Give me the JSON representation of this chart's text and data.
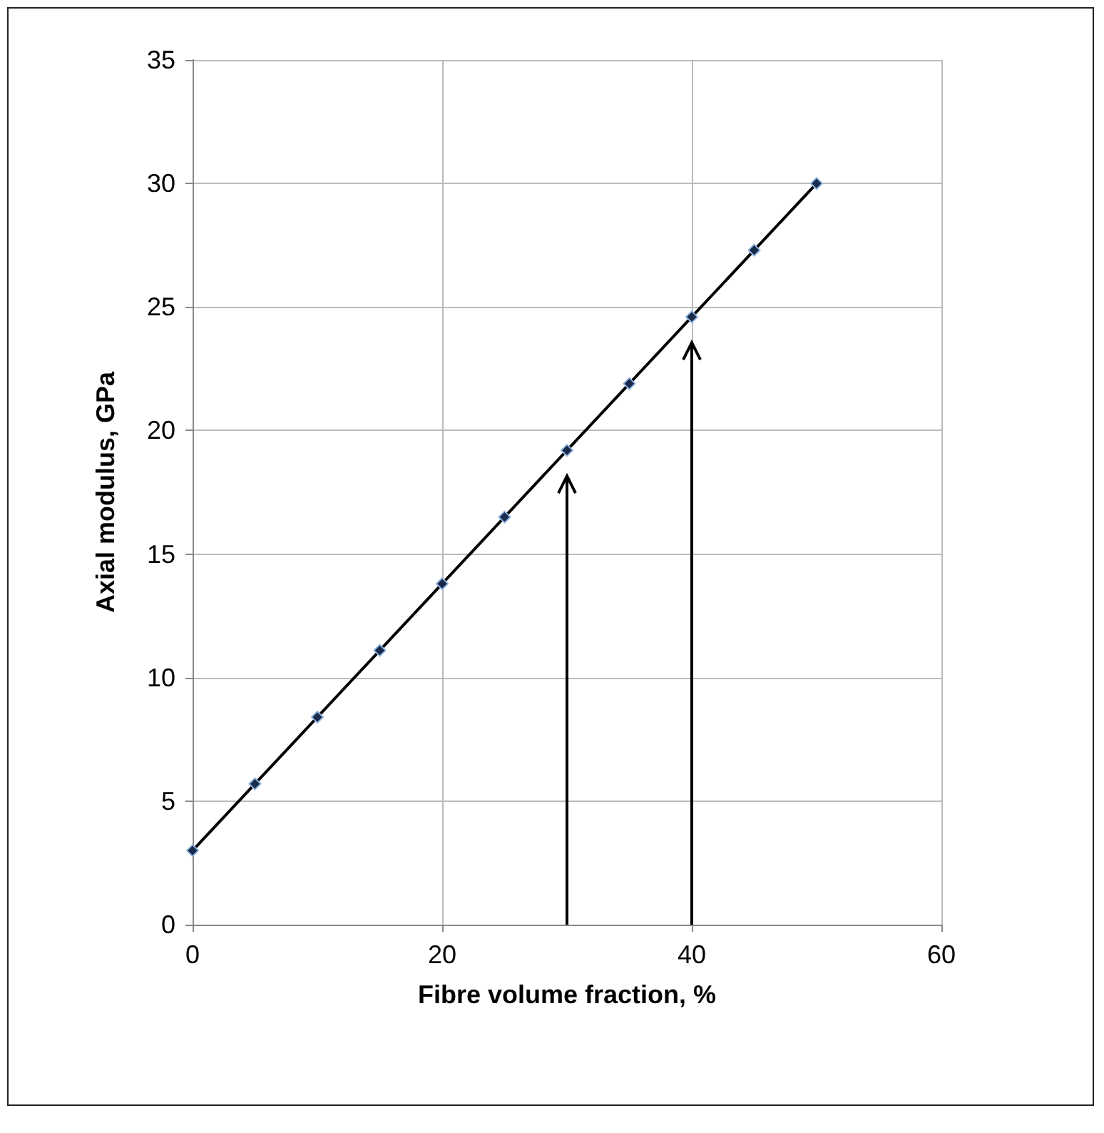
{
  "chart_data": {
    "type": "line",
    "xlabel": "Fibre volume fraction, %",
    "ylabel": "Axial modulus, GPa",
    "x": [
      0,
      5,
      10,
      15,
      20,
      25,
      30,
      35,
      40,
      45,
      50
    ],
    "series": [
      {
        "color": "#000000",
        "values": [
          3,
          5.7,
          8.4,
          11.1,
          13.8,
          16.5,
          19.2,
          21.9,
          24.6,
          27.3,
          30
        ]
      }
    ],
    "xlim": [
      0,
      60
    ],
    "xticks": [
      0,
      20,
      40,
      60
    ],
    "ylim": [
      0,
      35
    ],
    "yticks": [
      0,
      5,
      10,
      15,
      20,
      25,
      30,
      35
    ],
    "ref_lines": [
      {
        "axis": "x",
        "value": 30,
        "line_style": "solid"
      },
      {
        "axis": "x",
        "value": 40,
        "line_style": "solid"
      }
    ],
    "grid": true,
    "marker": "diamond",
    "line_style": "solid"
  }
}
